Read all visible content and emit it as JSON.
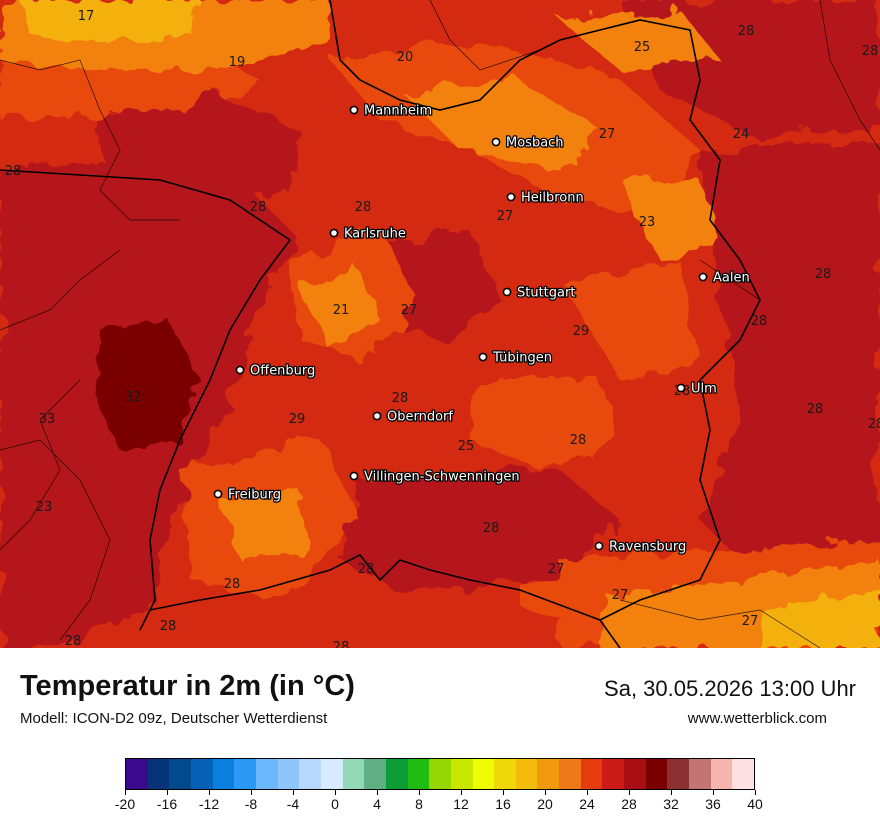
{
  "title": "Temperatur in 2m (in °C)",
  "subtitle": "Modell: ICON-D2 09z, Deutscher Wetterdienst",
  "datetime": "Sa, 30.05.2026 13:00 Uhr",
  "website": "www.wetterblick.com",
  "colors": {
    "deep_red": "#b4141b",
    "red": "#d42a12",
    "orange_red": "#e84a0c",
    "orange": "#f28111",
    "yellow_orange": "#f4b00d",
    "dark_maroon": "#7a0000",
    "city_dot": "#ffffff"
  },
  "cities": [
    {
      "name": "Mannheim"
    },
    {
      "name": "Mosbach"
    },
    {
      "name": "Heilbronn"
    },
    {
      "name": "Karlsruhe"
    },
    {
      "name": "Aalen"
    },
    {
      "name": "Stuttgart"
    },
    {
      "name": "Tübingen"
    },
    {
      "name": "Offenburg"
    },
    {
      "name": "Ulm"
    },
    {
      "name": "Oberndorf"
    },
    {
      "name": "Villingen-Schwenningen"
    },
    {
      "name": "Freiburg"
    },
    {
      "name": "Ravensburg"
    }
  ],
  "values": [
    "17",
    "19",
    "20",
    "25",
    "28",
    "28",
    "28",
    "27",
    "24",
    "28",
    "28",
    "27",
    "23",
    "28",
    "28",
    "21",
    "27",
    "29",
    "28",
    "32",
    "33",
    "28",
    "29",
    "28",
    "28",
    "25",
    "28",
    "23",
    "28",
    "28",
    "28",
    "27",
    "27",
    "28",
    "28",
    "27",
    "28"
  ],
  "legend": {
    "colors": [
      "#3b0a8c",
      "#06337a",
      "#034a8c",
      "#0560b8",
      "#0a7fe0",
      "#2b98f5",
      "#6db7fc",
      "#8ec5fb",
      "#b5d8fc",
      "#d8eafd",
      "#93d8b6",
      "#5faf84",
      "#0d9c35",
      "#20bc12",
      "#96d605",
      "#c8e802",
      "#eefc04",
      "#f0d70a",
      "#f3bb0a",
      "#f29a0d",
      "#ef7818",
      "#e43c0e",
      "#cc1b19",
      "#a80e13",
      "#7a0000",
      "#8a3030",
      "#c17575",
      "#f7b5b0",
      "#ffe0e0"
    ],
    "ticks": [
      "-20",
      "-16",
      "-12",
      "-8",
      "-4",
      "0",
      "4",
      "8",
      "12",
      "16",
      "20",
      "24",
      "28",
      "32",
      "36",
      "40"
    ]
  }
}
